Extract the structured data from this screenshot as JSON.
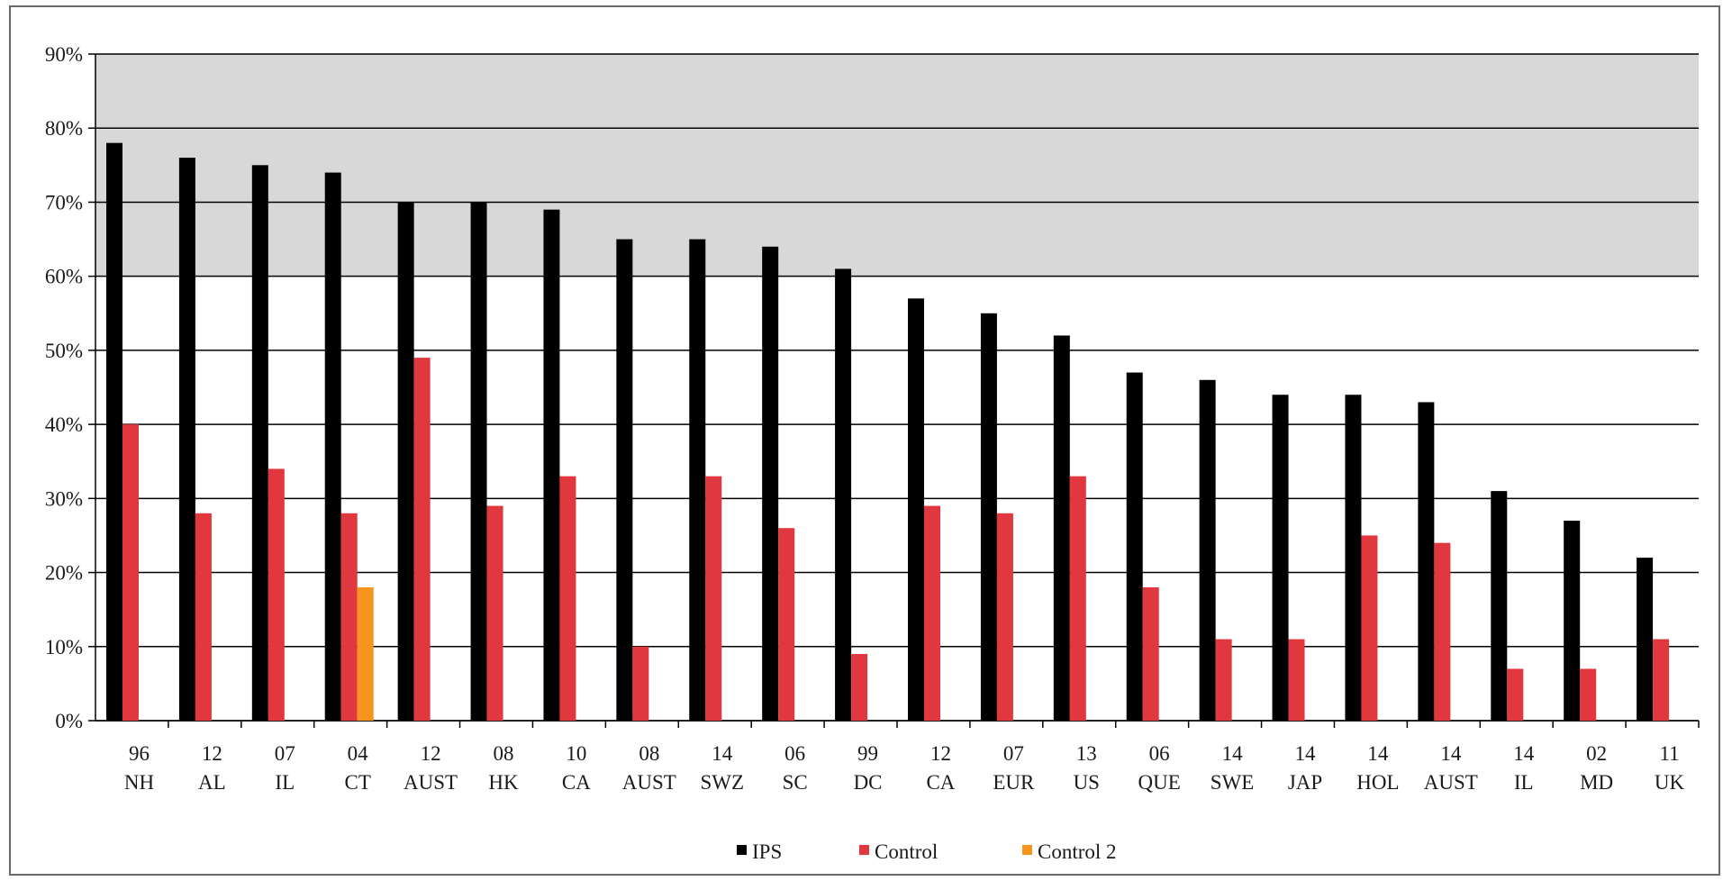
{
  "chart_data": {
    "type": "bar",
    "categories": [
      [
        "96",
        "NH"
      ],
      [
        "12",
        "AL"
      ],
      [
        "07",
        "IL"
      ],
      [
        "04",
        "CT"
      ],
      [
        "12",
        "AUST"
      ],
      [
        "08",
        "HK"
      ],
      [
        "10",
        "CA"
      ],
      [
        "08",
        "AUST"
      ],
      [
        "14",
        "SWZ"
      ],
      [
        "06",
        "SC"
      ],
      [
        "99",
        "DC"
      ],
      [
        "12",
        "CA"
      ],
      [
        "07",
        "EUR"
      ],
      [
        "13",
        "US"
      ],
      [
        "06",
        "QUE"
      ],
      [
        "14",
        "SWE"
      ],
      [
        "14",
        "JAP"
      ],
      [
        "14",
        "HOL"
      ],
      [
        "14",
        "AUST"
      ],
      [
        "14",
        "IL"
      ],
      [
        "02",
        "MD"
      ],
      [
        "11",
        "UK"
      ]
    ],
    "series": [
      {
        "name": "IPS",
        "color": "#000000",
        "values": [
          78,
          76,
          75,
          74,
          70,
          70,
          69,
          65,
          65,
          64,
          61,
          57,
          55,
          52,
          47,
          46,
          44,
          44,
          43,
          31,
          27,
          22
        ]
      },
      {
        "name": "Control",
        "color": "#e0383e",
        "values": [
          40,
          28,
          34,
          28,
          49,
          29,
          33,
          10,
          33,
          26,
          9,
          29,
          28,
          33,
          18,
          11,
          11,
          25,
          24,
          7,
          7,
          11
        ]
      },
      {
        "name": "Control 2",
        "color": "#f7941d",
        "values": [
          null,
          null,
          null,
          18,
          null,
          null,
          null,
          null,
          null,
          null,
          null,
          null,
          null,
          null,
          null,
          null,
          null,
          null,
          null,
          null,
          null,
          null
        ]
      }
    ],
    "ylim": [
      0,
      90
    ],
    "yticks": [
      "0%",
      "10%",
      "20%",
      "30%",
      "40%",
      "50%",
      "60%",
      "70%",
      "80%",
      "90%"
    ],
    "grid": true,
    "legend_position": "bottom",
    "title": "",
    "xlabel": "",
    "ylabel": ""
  }
}
